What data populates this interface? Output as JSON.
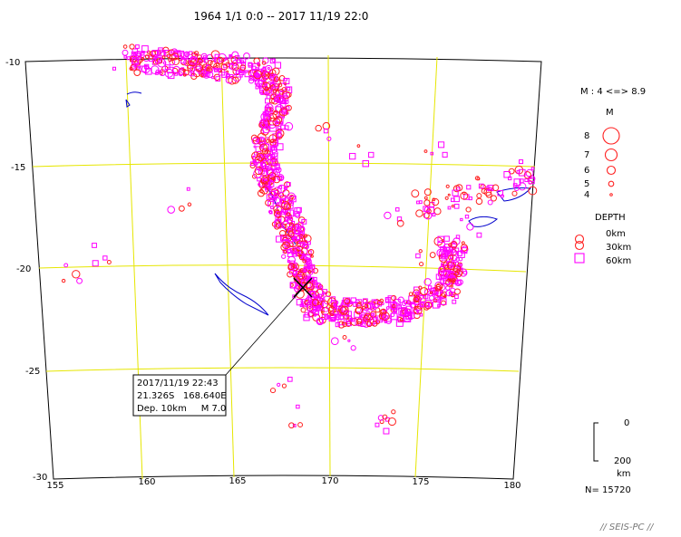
{
  "title": "1964 1/1  0:0  --  2017 11/19 22:0",
  "map": {
    "lat_labels": [
      "-10",
      "-15",
      "-20",
      "-25",
      "-30"
    ],
    "lon_labels": [
      "155",
      "160",
      "165",
      "170",
      "175",
      "180"
    ],
    "lat_values": [
      -10,
      -15,
      -20,
      -25,
      -30
    ],
    "lon_values": [
      155,
      160,
      165,
      170,
      175,
      180
    ]
  },
  "colors": {
    "shallow": "#ff2020",
    "deep": "#ff00ff",
    "coast": "#0000cc",
    "grid": "#e6e600",
    "frame": "#000000"
  },
  "event": {
    "datetime": "2017/11/19 22:43",
    "location": "21.326S   168.640E",
    "depth_magnitude": "Dep. 10km     M 7.0",
    "lat": -21.326,
    "lon": 168.64,
    "depth_km": 10,
    "magnitude": 7.0
  },
  "legend": {
    "magnitude_range": "M : 4 <=> 8.9",
    "magnitude_title": "M",
    "magnitude_levels": [
      "8",
      "7",
      "6",
      "5",
      "4"
    ],
    "depth_title": "DEPTH",
    "depth_levels": [
      "0km",
      "30km",
      "60km"
    ],
    "scale_top": "0",
    "scale_bottom": "200",
    "scale_unit": "km",
    "count": "N= 15720"
  },
  "credit": "// SEIS-PC //"
}
